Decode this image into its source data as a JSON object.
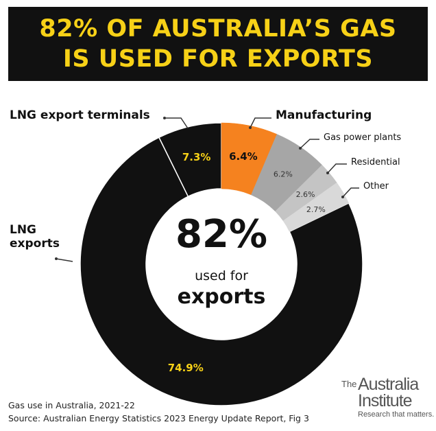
{
  "chart_data": {
    "type": "donut",
    "title": [
      "82% OF AUSTRALIA’S GAS",
      "IS USED FOR EXPORTS"
    ],
    "categories": [
      "Manufacturing",
      "Gas power plants",
      "Residential",
      "Other",
      "LNG exports",
      "LNG export terminals"
    ],
    "values": [
      6.4,
      6.2,
      2.6,
      2.7,
      74.9,
      7.3
    ],
    "value_labels": [
      "6.4%",
      "6.2%",
      "2.6%",
      "2.7%",
      "74.9%",
      "7.3%"
    ],
    "colors": [
      "#f5821f",
      "#a6a6a6",
      "#c4c4c4",
      "#d9d9d9",
      "#111111",
      "#111111"
    ],
    "value_label_colors": [
      "#111111",
      "#333333",
      "#333333",
      "#333333",
      "#f7d117",
      "#f7d117"
    ],
    "center_text": {
      "big": "82%",
      "line1": "used for",
      "line2": "exports"
    },
    "footnote": "Gas use in Australia, 2021-22",
    "source": "Source: Australian Energy Statistics 2023 Energy Update Report, Fig 3",
    "logo": {
      "prefix": "The",
      "line1": "Australia",
      "line2": "Institute",
      "tagline": "Research that matters."
    }
  }
}
